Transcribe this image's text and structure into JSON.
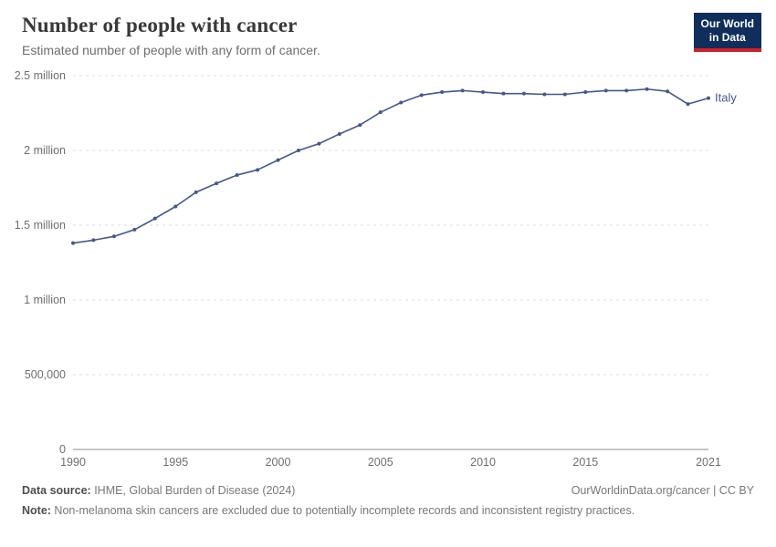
{
  "logo": {
    "line1": "Our World",
    "line2": "in Data"
  },
  "header": {
    "title": "Number of people with cancer",
    "subtitle": "Estimated number of people with any form of cancer."
  },
  "footer": {
    "source_label": "Data source:",
    "source_text": " IHME, Global Burden of Disease (2024)",
    "rights": "OurWorldinData.org/cancer | CC BY",
    "note_label": "Note:",
    "note_text": " Non-melanoma skin cancers are excluded due to potentially incomplete records and inconsistent registry practices."
  },
  "colors": {
    "line": "#44588c",
    "grid": "#dcdcdc",
    "axis": "#8f8f8f",
    "logo_bg": "#0f2e5c",
    "logo_accent": "#cf2229"
  },
  "chart_data": {
    "type": "line",
    "title": "Number of people with cancer",
    "subtitle": "Estimated number of people with any form of cancer.",
    "grid": true,
    "legend_position": "end-of-line",
    "xlim": [
      1990,
      2021
    ],
    "ylim": [
      0,
      2500000
    ],
    "xticks": [
      1990,
      1995,
      2000,
      2005,
      2010,
      2015,
      2021
    ],
    "yticks": [
      {
        "value": 0,
        "label": "0"
      },
      {
        "value": 500000,
        "label": "500,000"
      },
      {
        "value": 1000000,
        "label": "1 million"
      },
      {
        "value": 1500000,
        "label": "1.5 million"
      },
      {
        "value": 2000000,
        "label": "2 million"
      },
      {
        "value": 2500000,
        "label": "2.5 million"
      }
    ],
    "series": [
      {
        "name": "Italy",
        "color": "#44588c",
        "x": [
          1990,
          1991,
          1992,
          1993,
          1994,
          1995,
          1996,
          1997,
          1998,
          1999,
          2000,
          2001,
          2002,
          2003,
          2004,
          2005,
          2006,
          2007,
          2008,
          2009,
          2010,
          2011,
          2012,
          2013,
          2014,
          2015,
          2016,
          2017,
          2018,
          2019,
          2020,
          2021
        ],
        "values": [
          1380000,
          1400000,
          1425000,
          1470000,
          1545000,
          1625000,
          1720000,
          1780000,
          1835000,
          1870000,
          1935000,
          2000000,
          2045000,
          2110000,
          2170000,
          2255000,
          2320000,
          2370000,
          2390000,
          2400000,
          2390000,
          2380000,
          2380000,
          2375000,
          2375000,
          2390000,
          2400000,
          2400000,
          2410000,
          2395000,
          2310000,
          2350000
        ]
      }
    ]
  }
}
